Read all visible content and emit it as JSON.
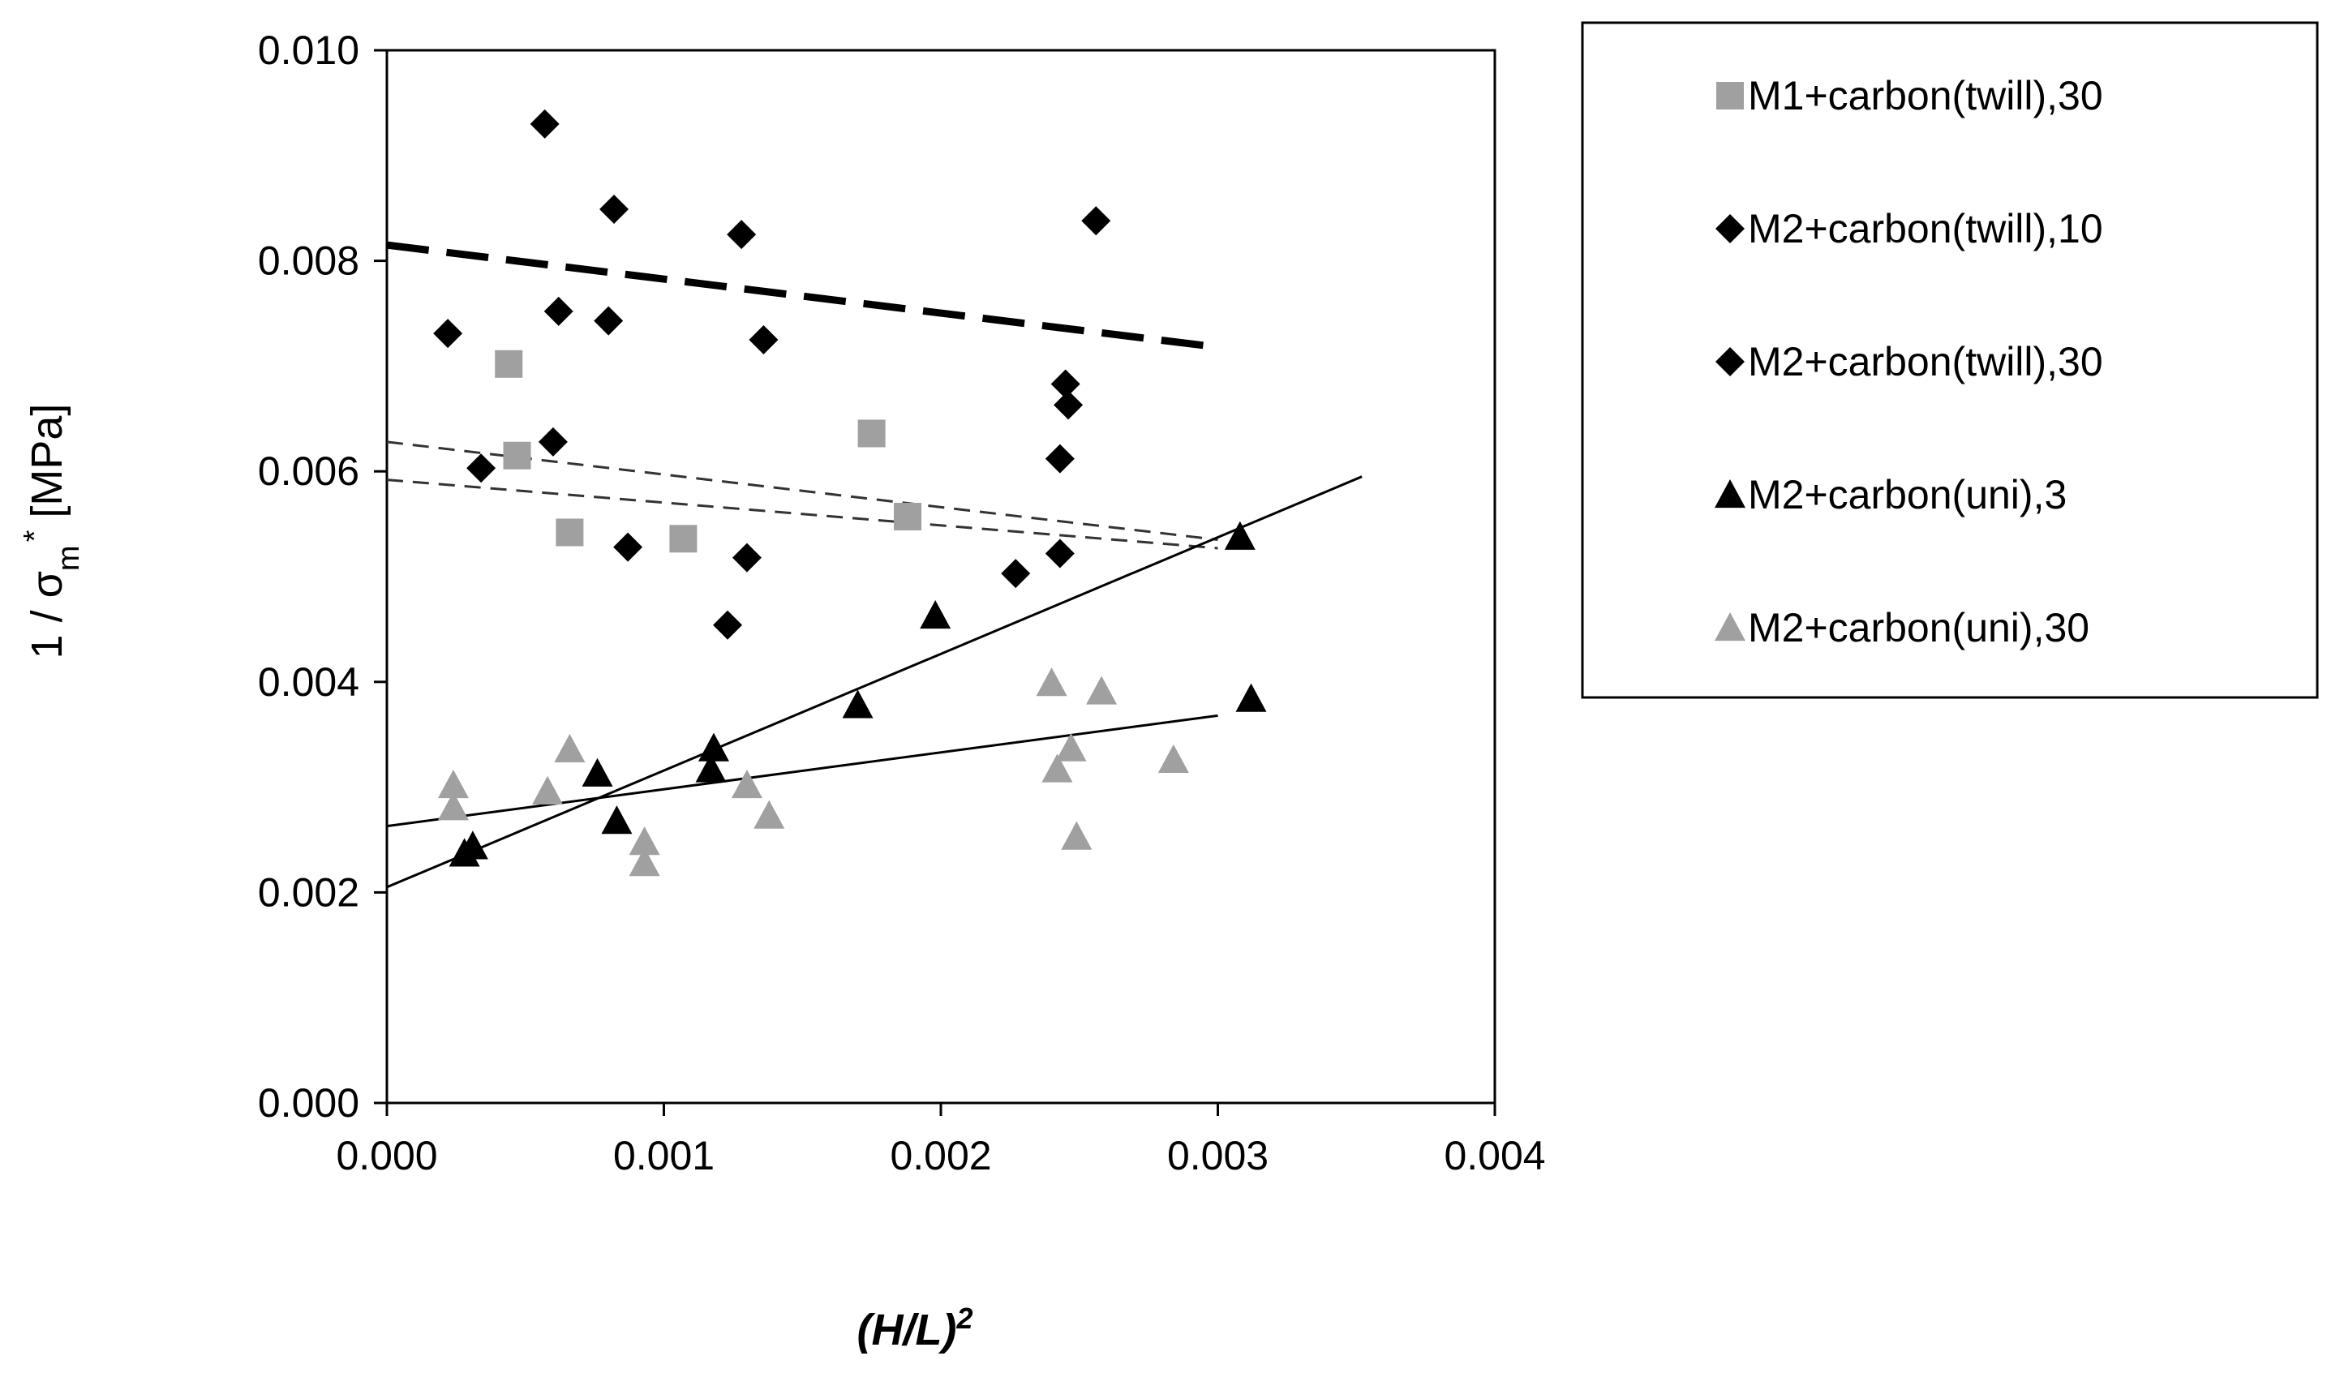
{
  "chart_data": {
    "type": "scatter",
    "title": "",
    "xlabel": "(H/L)",
    "xlabel_sup": "2",
    "ylabel_prefix": "1 / σ",
    "ylabel_sub": "m",
    "ylabel_sup": "*",
    "ylabel_suffix": " [MPa]",
    "xlim": [
      0.0,
      0.004
    ],
    "ylim": [
      0.0,
      0.01
    ],
    "xticks": [
      "0.000",
      "0.001",
      "0.002",
      "0.003",
      "0.004"
    ],
    "yticks": [
      "0.000",
      "0.002",
      "0.004",
      "0.006",
      "0.008",
      "0.010"
    ],
    "legend_position": "right",
    "series": [
      {
        "name": "M1+carbon(twill),30",
        "marker": "square",
        "color": "#a0a0a0",
        "points": [
          [
            0.00044,
            0.00702
          ],
          [
            0.00047,
            0.00615
          ],
          [
            0.00066,
            0.00542
          ],
          [
            0.00107,
            0.00536
          ],
          [
            0.00175,
            0.00636
          ],
          [
            0.00188,
            0.00557
          ]
        ]
      },
      {
        "name": "M2+carbon(twill),10",
        "marker": "diamond",
        "color": "#000000",
        "points": [
          [
            0.00057,
            0.0093
          ],
          [
            0.00082,
            0.00849
          ],
          [
            0.00128,
            0.00825
          ],
          [
            0.00256,
            0.00838
          ],
          [
            0.00022,
            0.00731
          ],
          [
            0.00062,
            0.00752
          ],
          [
            0.0008,
            0.00743
          ],
          [
            0.00136,
            0.00725
          ],
          [
            0.00245,
            0.00683
          ],
          [
            0.00246,
            0.00663
          ]
        ]
      },
      {
        "name": "M2+carbon(twill),30",
        "marker": "diamond",
        "color": "#000000",
        "points": [
          [
            0.00034,
            0.00603
          ],
          [
            0.0006,
            0.00628
          ],
          [
            0.00087,
            0.00528
          ],
          [
            0.0013,
            0.00518
          ],
          [
            0.00123,
            0.00454
          ],
          [
            0.00227,
            0.00503
          ],
          [
            0.00243,
            0.00522
          ],
          [
            0.00243,
            0.00612
          ]
        ]
      },
      {
        "name": "M2+carbon(uni),3",
        "marker": "triangle",
        "color": "#000000",
        "points": [
          [
            0.00028,
            0.00237
          ],
          [
            0.00031,
            0.00244
          ],
          [
            0.00076,
            0.00313
          ],
          [
            0.00083,
            0.00268
          ],
          [
            0.00117,
            0.00317
          ],
          [
            0.00118,
            0.00337
          ],
          [
            0.0017,
            0.00378
          ],
          [
            0.00198,
            0.00463
          ],
          [
            0.00308,
            0.00538
          ],
          [
            0.00312,
            0.00384
          ]
        ]
      },
      {
        "name": "M2+carbon(uni),30",
        "marker": "triangle",
        "color": "#a0a0a0",
        "points": [
          [
            0.00024,
            0.00302
          ],
          [
            0.00024,
            0.00281
          ],
          [
            0.00058,
            0.00296
          ],
          [
            0.00066,
            0.00336
          ],
          [
            0.00093,
            0.00248
          ],
          [
            0.00093,
            0.00228
          ],
          [
            0.0013,
            0.00302
          ],
          [
            0.00138,
            0.00273
          ],
          [
            0.0024,
            0.00399
          ],
          [
            0.00242,
            0.00317
          ],
          [
            0.00247,
            0.00337
          ],
          [
            0.00249,
            0.00253
          ],
          [
            0.00258,
            0.00391
          ],
          [
            0.00284,
            0.00326
          ]
        ]
      }
    ],
    "trendlines": [
      {
        "name": "trend-twill-10",
        "style": "long-dash",
        "width": 9,
        "color": "#000000",
        "x": [
          0.0,
          0.003
        ],
        "y": [
          0.00815,
          0.00718
        ]
      },
      {
        "name": "trend-twill-30-a",
        "style": "short-dash",
        "width": 3,
        "color": "#333333",
        "x": [
          0.0,
          0.003
        ],
        "y": [
          0.00628,
          0.00535
        ]
      },
      {
        "name": "trend-twill-30-b",
        "style": "short-dash",
        "width": 3,
        "color": "#333333",
        "x": [
          0.0,
          0.003
        ],
        "y": [
          0.00592,
          0.00527
        ]
      },
      {
        "name": "trend-uni-3",
        "style": "solid",
        "width": 3,
        "color": "#000000",
        "x": [
          0.0,
          0.00352
        ],
        "y": [
          0.00205,
          0.00595
        ]
      },
      {
        "name": "trend-uni-30",
        "style": "solid",
        "width": 3,
        "color": "#000000",
        "x": [
          0.0,
          0.003
        ],
        "y": [
          0.00263,
          0.00368
        ]
      }
    ]
  }
}
